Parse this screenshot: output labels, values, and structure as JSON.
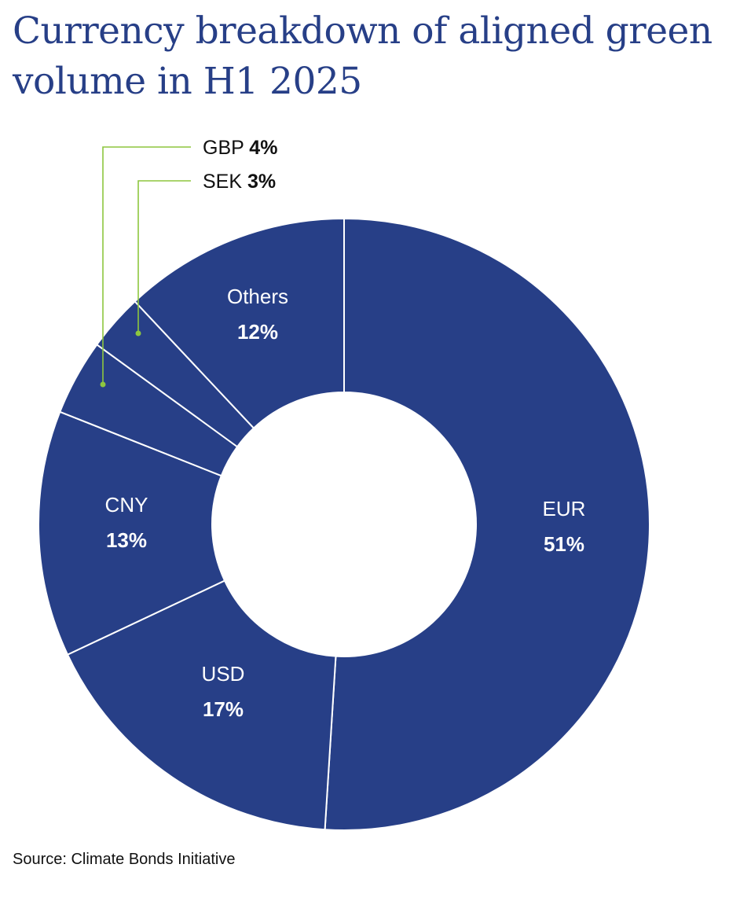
{
  "chart_data": {
    "type": "pie",
    "variant": "donut",
    "title": "Currency breakdown of aligned green volume in H1 2025",
    "unit": "%",
    "slices": [
      {
        "name": "EUR",
        "value": 51,
        "label": "51%"
      },
      {
        "name": "USD",
        "value": 17,
        "label": "17%"
      },
      {
        "name": "CNY",
        "value": 13,
        "label": "13%"
      },
      {
        "name": "GBP",
        "value": 4,
        "label": "4%"
      },
      {
        "name": "SEK",
        "value": 3,
        "label": "3%"
      },
      {
        "name": "Others",
        "value": 12,
        "label": "12%"
      }
    ],
    "source": "Source: Climate Bonds Initiative"
  },
  "colors": {
    "slice_fill": "#273f87",
    "slice_border": "#ffffff",
    "title": "#273f87",
    "callout_line": "#8dc63f"
  }
}
